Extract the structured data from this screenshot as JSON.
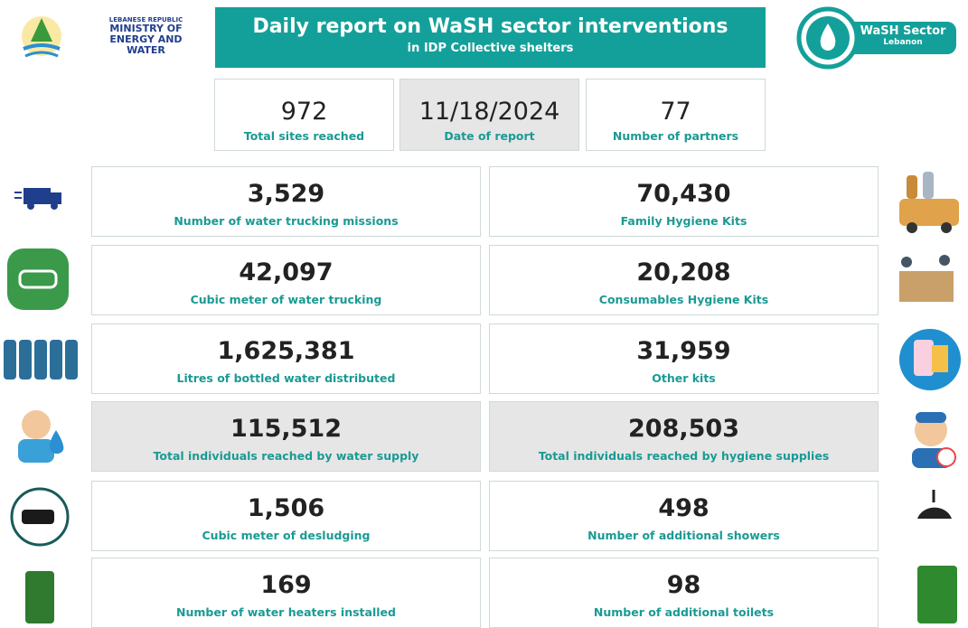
{
  "header": {
    "ministry": {
      "country": "LEBANESE REPUBLIC",
      "name": "MINISTRY OF ENERGY AND WATER"
    },
    "title": "Daily report on WaSH sector interventions",
    "subtitle": "in IDP Collective shelters",
    "sector_logo": {
      "name": "WaSH Sector",
      "country": "Lebanon"
    }
  },
  "summary": [
    {
      "value": "972",
      "label": "Total sites reached"
    },
    {
      "value": "11/18/2024",
      "label": "Date of report"
    },
    {
      "value": "77",
      "label": "Number of partners"
    }
  ],
  "rows": [
    {
      "left": {
        "value": "3,529",
        "label": "Number of water trucking missions"
      },
      "right": {
        "value": "70,430",
        "label": "Family Hygiene Kits"
      }
    },
    {
      "left": {
        "value": "42,097",
        "label": "Cubic meter of water trucking"
      },
      "right": {
        "value": "20,208",
        "label": "Consumables Hygiene Kits"
      }
    },
    {
      "left": {
        "value": "1,625,381",
        "label": "Litres of bottled water distributed"
      },
      "right": {
        "value": "31,959",
        "label": "Other kits"
      }
    },
    {
      "left": {
        "value": "115,512",
        "label": "Total individuals reached by water supply"
      },
      "right": {
        "value": "208,503",
        "label": "Total individuals reached by hygiene supplies"
      }
    },
    {
      "left": {
        "value": "1,506",
        "label": "Cubic meter of desludging"
      },
      "right": {
        "value": "498",
        "label": "Number of additional showers"
      }
    },
    {
      "left": {
        "value": "169",
        "label": "Number of water heaters installed"
      },
      "right": {
        "value": "98",
        "label": "Number of additional toilets"
      }
    }
  ]
}
